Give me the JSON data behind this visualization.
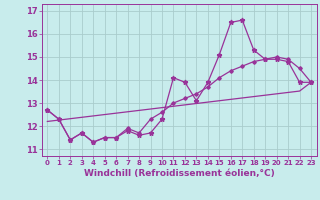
{
  "title": "",
  "xlabel": "Windchill (Refroidissement éolien,°C)",
  "bg_color": "#c8ecec",
  "grid_color": "#aacccc",
  "line_color": "#993399",
  "xlim": [
    -0.5,
    23.5
  ],
  "ylim": [
    10.7,
    17.3
  ],
  "xticks": [
    0,
    1,
    2,
    3,
    4,
    5,
    6,
    7,
    8,
    9,
    10,
    11,
    12,
    13,
    14,
    15,
    16,
    17,
    18,
    19,
    20,
    21,
    22,
    23
  ],
  "yticks": [
    11,
    12,
    13,
    14,
    15,
    16,
    17
  ],
  "series1_x": [
    0,
    1,
    2,
    3,
    4,
    5,
    6,
    7,
    8,
    9,
    10,
    11,
    12,
    13,
    14,
    15,
    16,
    17,
    18,
    19,
    20,
    21,
    22,
    23
  ],
  "series1_y": [
    12.7,
    12.3,
    11.4,
    11.7,
    11.3,
    11.5,
    11.5,
    11.8,
    11.6,
    11.7,
    12.3,
    14.1,
    13.9,
    13.1,
    13.9,
    15.1,
    16.5,
    16.6,
    15.3,
    14.9,
    14.9,
    14.8,
    13.9,
    13.9
  ],
  "series2_x": [
    0,
    1,
    2,
    3,
    4,
    5,
    6,
    7,
    8,
    9,
    10,
    11,
    12,
    13,
    14,
    15,
    16,
    17,
    18,
    19,
    20,
    21,
    22,
    23
  ],
  "series2_y": [
    12.7,
    12.3,
    11.4,
    11.7,
    11.3,
    11.5,
    11.5,
    11.9,
    11.7,
    12.3,
    12.6,
    13.0,
    13.2,
    13.4,
    13.7,
    14.1,
    14.4,
    14.6,
    14.8,
    14.9,
    15.0,
    14.9,
    14.5,
    13.9
  ],
  "series3_x": [
    0,
    1,
    2,
    3,
    4,
    5,
    6,
    7,
    8,
    9,
    10,
    11,
    12,
    13,
    14,
    15,
    16,
    17,
    18,
    19,
    20,
    21,
    22,
    23
  ],
  "series3_y": [
    12.2,
    12.26,
    12.32,
    12.38,
    12.44,
    12.5,
    12.56,
    12.62,
    12.68,
    12.74,
    12.8,
    12.86,
    12.92,
    12.98,
    13.04,
    13.1,
    13.16,
    13.22,
    13.28,
    13.34,
    13.4,
    13.46,
    13.52,
    13.9
  ]
}
